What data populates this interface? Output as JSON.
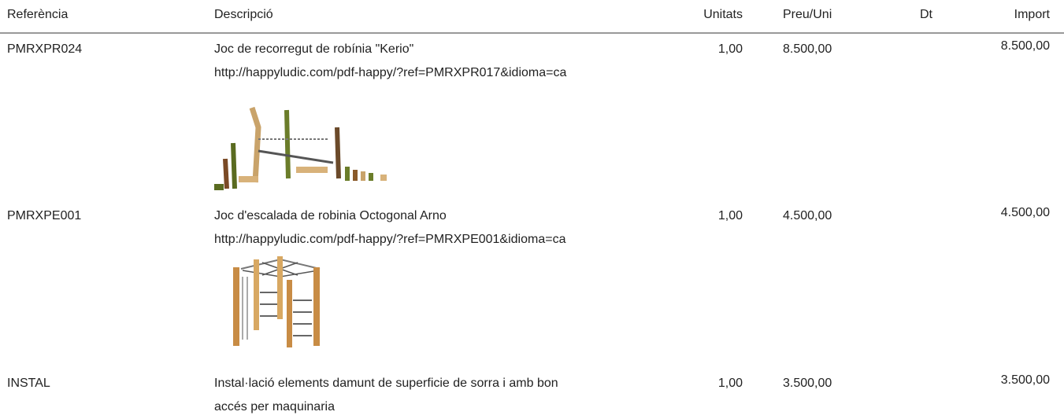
{
  "table": {
    "headers": [
      "Referència",
      "Descripció",
      "Unitats",
      "Preu/Uni",
      "Dt",
      "Import"
    ],
    "rows": [
      {
        "reference": "PMRXPR024",
        "description": [
          "Joc de recorregut de robínia \"Kerio\"",
          "http://happyludic.com/pdf-happy/?ref=PMRXPR017&idioma=ca"
        ],
        "units": "1,00",
        "price": "8.500,00",
        "discount": "",
        "amount": "8.500,00"
      },
      {
        "reference": "PMRXPE001",
        "description": [
          "Joc d'escalada de robinia Octogonal Arno",
          "http://happyludic.com/pdf-happy/?ref=PMRXPE001&idioma=ca"
        ],
        "units": "1,00",
        "price": "4.500,00",
        "discount": "",
        "amount": "4.500,00"
      },
      {
        "reference": "INSTAL",
        "description": [
          "Instal·lació elements damunt de superficie de sorra i amb bon",
          "accés per maquinaria"
        ],
        "units": "1,00",
        "price": "3.500,00",
        "discount": "",
        "amount": "3.500,00"
      }
    ]
  }
}
